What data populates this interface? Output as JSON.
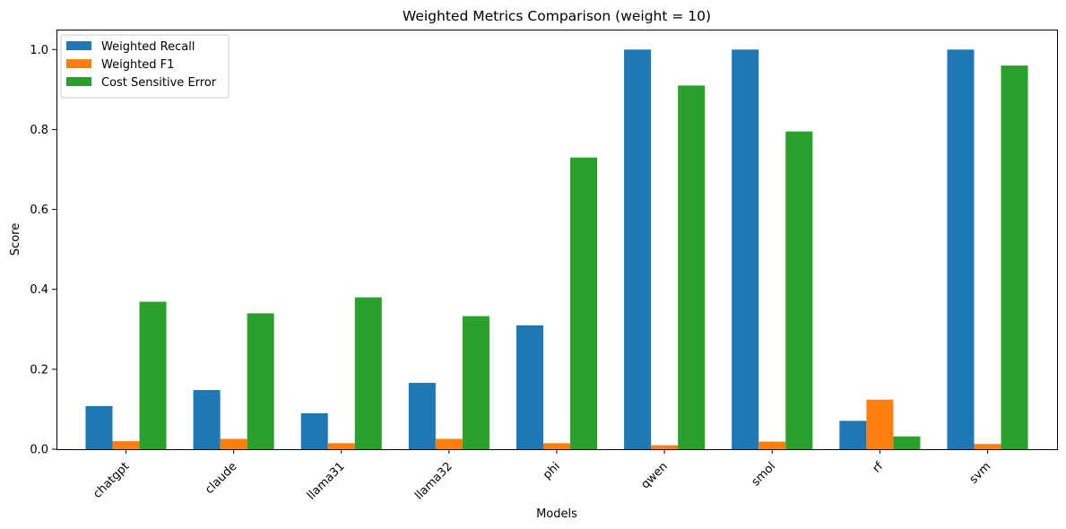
{
  "chart_data": {
    "type": "bar",
    "title": "Weighted Metrics Comparison (weight = 10)",
    "xlabel": "Models",
    "ylabel": "Score",
    "ylim": [
      0,
      1.05
    ],
    "yticks": [
      "0.0",
      "0.2",
      "0.4",
      "0.6",
      "0.8",
      "1.0"
    ],
    "ytick_values": [
      0,
      0.2,
      0.4,
      0.6,
      0.8,
      1.0
    ],
    "categories": [
      "chatgpt",
      "claude",
      "llama31",
      "llama32",
      "phi",
      "qwen",
      "smol",
      "rf",
      "svm"
    ],
    "series": [
      {
        "name": "Weighted Recall",
        "color": "#1f77b4",
        "values": [
          0.108,
          0.148,
          0.09,
          0.166,
          0.31,
          1.0,
          1.0,
          0.071,
          1.0
        ]
      },
      {
        "name": "Weighted F1",
        "color": "#ff7f0e",
        "values": [
          0.02,
          0.026,
          0.015,
          0.026,
          0.015,
          0.01,
          0.019,
          0.124,
          0.013
        ]
      },
      {
        "name": "Cost Sensitive Error",
        "color": "#2ca02c",
        "values": [
          0.369,
          0.34,
          0.38,
          0.333,
          0.73,
          0.91,
          0.795,
          0.032,
          0.96
        ]
      }
    ],
    "grid": false,
    "legend_position": "top-left"
  }
}
